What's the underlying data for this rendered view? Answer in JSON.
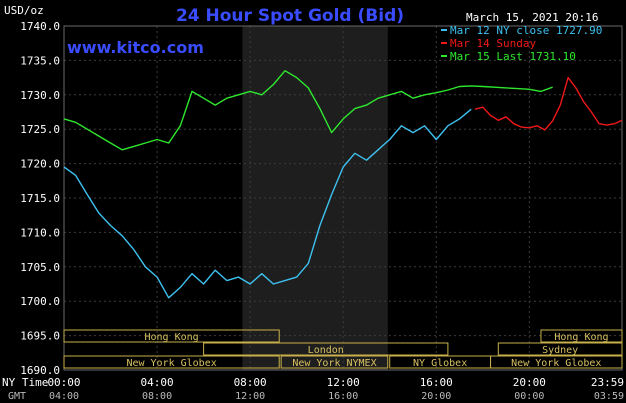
{
  "chart_data": {
    "type": "line",
    "title": "24 Hour Spot Gold (Bid)",
    "brand": "www.kitco.com",
    "timestamp": "March 15, 2021 20:16",
    "ylabel": "USD/oz",
    "ylim": [
      1690,
      1740
    ],
    "yticks": [
      "1740.0",
      "1735.0",
      "1730.0",
      "1725.0",
      "1720.0",
      "1715.0",
      "1710.0",
      "1705.0",
      "1700.0",
      "1695.0",
      "1690.0"
    ],
    "xlim": [
      0,
      1439
    ],
    "x_primary_label": "NY Time",
    "x_secondary_label": "GMT",
    "x_ticks_ny": [
      "00:00",
      "04:00",
      "08:00",
      "12:00",
      "16:00",
      "20:00",
      "23:59"
    ],
    "x_ticks_gmt": [
      "04:00",
      "08:00",
      "12:00",
      "16:00",
      "20:00",
      "00:00",
      "03:59"
    ],
    "x_tick_minutes": [
      0,
      240,
      480,
      720,
      960,
      1200,
      1439
    ],
    "shaded_range": [
      460,
      835
    ],
    "legend": [
      {
        "text": "Mar 12 NY close 1727.90",
        "color": "#3ec1f0"
      },
      {
        "text": "Mar 14 Sunday",
        "color": "#f01818"
      },
      {
        "text": "Mar 15 Last 1731.10",
        "color": "#2ee82e"
      }
    ],
    "series": [
      {
        "name": "Mar 12 NY close 1727.90",
        "color": "#3ec1f0",
        "x": [
          0,
          30,
          60,
          90,
          120,
          150,
          180,
          210,
          240,
          270,
          300,
          330,
          360,
          390,
          420,
          450,
          480,
          510,
          540,
          570,
          600,
          630,
          660,
          690,
          720,
          750,
          780,
          810,
          840,
          870,
          900,
          930,
          960,
          990,
          1020,
          1050
        ],
        "y": [
          1719.5,
          1718.3,
          1715.5,
          1712.8,
          1711.0,
          1709.5,
          1707.5,
          1705.0,
          1703.5,
          1700.5,
          1702.0,
          1704.0,
          1702.5,
          1704.5,
          1703.0,
          1703.5,
          1702.5,
          1704.0,
          1702.5,
          1703.0,
          1703.5,
          1705.5,
          1711.0,
          1715.5,
          1719.5,
          1721.5,
          1720.5,
          1722.0,
          1723.5,
          1725.5,
          1724.5,
          1725.5,
          1723.5,
          1725.5,
          1726.5,
          1727.9
        ]
      },
      {
        "name": "Mar 14 Sunday",
        "color": "#f01818",
        "x": [
          1060,
          1080,
          1100,
          1120,
          1140,
          1160,
          1180,
          1200,
          1220,
          1240,
          1260,
          1280,
          1300,
          1320,
          1340,
          1360,
          1380,
          1400,
          1420,
          1439
        ],
        "y": [
          1727.9,
          1728.2,
          1727.0,
          1726.3,
          1726.8,
          1725.8,
          1725.3,
          1725.2,
          1725.5,
          1724.9,
          1726.2,
          1728.5,
          1732.5,
          1731.0,
          1729.0,
          1727.5,
          1725.8,
          1725.6,
          1725.8,
          1726.3
        ]
      },
      {
        "name": "Mar 15 Last 1731.10",
        "color": "#2ee82e",
        "x": [
          0,
          30,
          60,
          90,
          120,
          150,
          180,
          210,
          240,
          270,
          300,
          330,
          360,
          390,
          420,
          450,
          480,
          510,
          540,
          570,
          600,
          630,
          660,
          690,
          720,
          750,
          780,
          810,
          840,
          870,
          900,
          930,
          960,
          990,
          1020,
          1050,
          1080,
          1110,
          1140,
          1170,
          1200,
          1230,
          1260
        ],
        "y": [
          1726.5,
          1726.0,
          1725.0,
          1724.0,
          1723.0,
          1722.0,
          1722.5,
          1723.0,
          1723.5,
          1723.0,
          1725.5,
          1730.5,
          1729.5,
          1728.5,
          1729.5,
          1730.0,
          1730.5,
          1730.0,
          1731.5,
          1733.5,
          1732.5,
          1731.0,
          1728.0,
          1724.5,
          1726.5,
          1728.0,
          1728.5,
          1729.5,
          1730.0,
          1730.5,
          1729.5,
          1730.0,
          1730.3,
          1730.7,
          1731.2,
          1731.3,
          1731.2,
          1731.1,
          1731.0,
          1730.9,
          1730.8,
          1730.5,
          1731.1
        ]
      }
    ],
    "sessions_row1": [
      {
        "name": "Hong Kong",
        "start": 0,
        "end": 555
      },
      {
        "name": "Hong Kong",
        "start": 1230,
        "end": 1439
      }
    ],
    "sessions_row2": [
      {
        "name": "London",
        "start": 360,
        "end": 990
      },
      {
        "name": "Sydney",
        "start": 1120,
        "end": 1439
      }
    ],
    "sessions_row3": [
      {
        "name": "New York Globex",
        "start": 0,
        "end": 555
      },
      {
        "name": "New York NYMEX",
        "start": 560,
        "end": 835
      },
      {
        "name": "NY Globex",
        "start": 840,
        "end": 1100
      },
      {
        "name": "New York Globex",
        "start": 1100,
        "end": 1439
      }
    ]
  }
}
